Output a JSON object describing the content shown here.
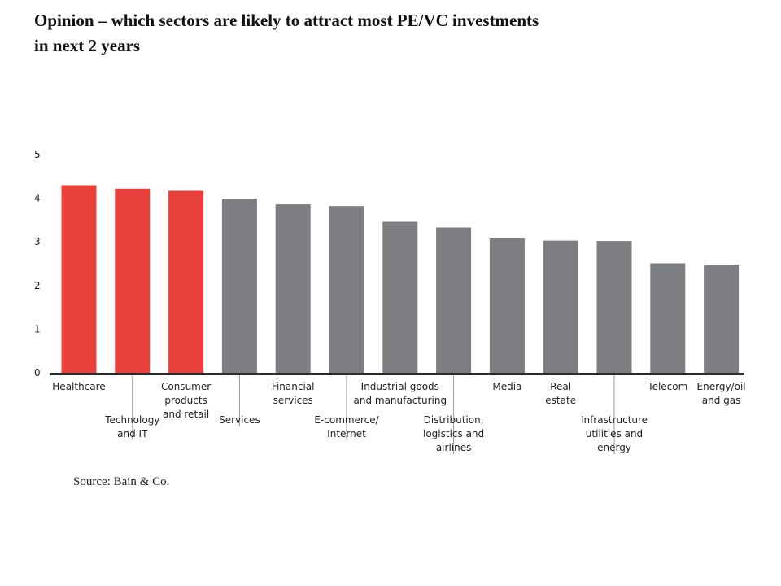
{
  "page": {
    "title_lines": [
      "Opinion – which sectors are likely to attract most PE/VC investments",
      "in next 2 years"
    ],
    "source": "Source: Bain & Co."
  },
  "chart_data": {
    "type": "bar",
    "title": "Opinion – which sectors are likely to attract most PE/VC investments in next 2 years",
    "xlabel": "",
    "ylabel": "",
    "ylim": [
      0,
      5
    ],
    "yticks": [
      0,
      1,
      2,
      3,
      4,
      5
    ],
    "grid": false,
    "categories": [
      "Healthcare",
      "Technology and IT",
      "Consumer products and retail",
      "Services",
      "Financial services",
      "E-commerce/ Internet",
      "Industrial goods and manufacturing",
      "Distribution, logistics and airlines",
      "Media",
      "Real estate",
      "Infrastructure utilities and energy",
      "Telecom",
      "Energy/oil and gas"
    ],
    "category_label_lines": [
      [
        "Healthcare"
      ],
      [
        "Technology",
        "and IT"
      ],
      [
        "Consumer",
        "products",
        "and retail"
      ],
      [
        "Services"
      ],
      [
        "Financial",
        "services"
      ],
      [
        "E-commerce/",
        "Internet"
      ],
      [
        "Industrial goods",
        "and manufacturing"
      ],
      [
        "Distribution,",
        "logistics and",
        "airlines"
      ],
      [
        "Media"
      ],
      [
        "Real",
        "estate"
      ],
      [
        "Infrastructure",
        "utilities and",
        "energy"
      ],
      [
        "Telecom"
      ],
      [
        "Energy/oil",
        "and gas"
      ]
    ],
    "category_label_level": [
      0,
      1,
      0,
      1,
      0,
      1,
      0,
      1,
      0,
      0,
      1,
      0,
      0
    ],
    "values": [
      4.3,
      4.22,
      4.17,
      3.99,
      3.86,
      3.82,
      3.46,
      3.33,
      3.08,
      3.03,
      3.02,
      2.51,
      2.48
    ],
    "colors": [
      "#e8403a",
      "#e8403a",
      "#e8403a",
      "#7d7e82",
      "#7d7e82",
      "#7d7e82",
      "#7d7e82",
      "#7d7e82",
      "#7d7e82",
      "#7d7e82",
      "#7d7e82",
      "#7d7e82",
      "#7d7e82"
    ]
  }
}
